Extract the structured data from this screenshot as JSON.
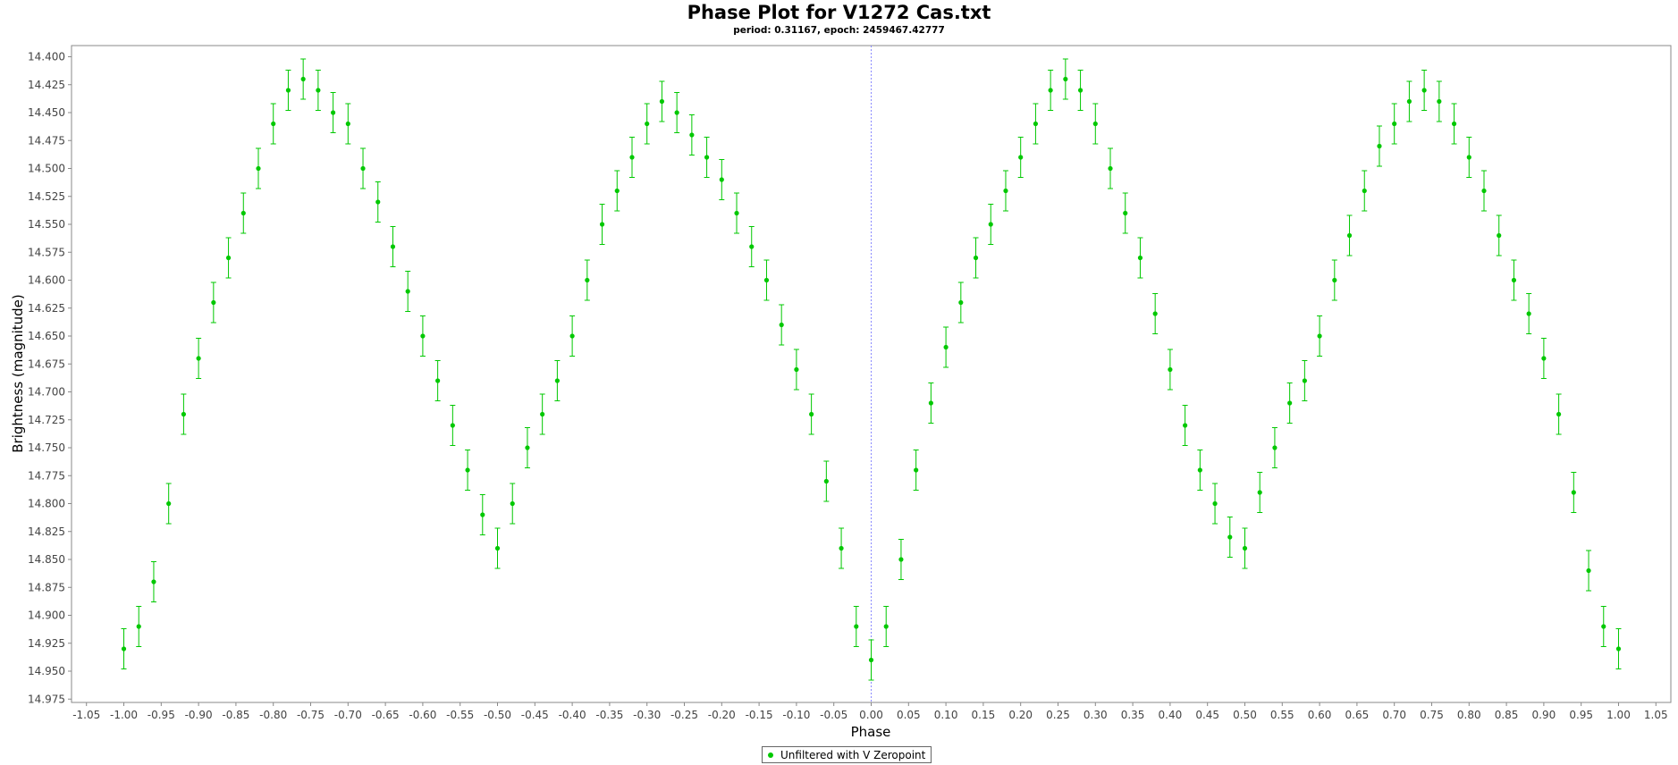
{
  "chart_data": {
    "type": "scatter",
    "title": "Phase Plot for V1272 Cas.txt",
    "subtitle": "period: 0.31167, epoch: 2459467.42777",
    "xlabel": "Phase",
    "ylabel": "Brightness (magnitude)",
    "xlim": [
      -1.07,
      1.07
    ],
    "ylim": [
      14.39,
      14.978
    ],
    "y_inverted": true,
    "grid": false,
    "zero_line": true,
    "x_ticks": [
      "-1.05",
      "-1.00",
      "-0.95",
      "-0.90",
      "-0.85",
      "-0.80",
      "-0.75",
      "-0.70",
      "-0.65",
      "-0.60",
      "-0.55",
      "-0.50",
      "-0.45",
      "-0.40",
      "-0.35",
      "-0.30",
      "-0.25",
      "-0.20",
      "-0.15",
      "-0.10",
      "-0.05",
      "0.00",
      "0.05",
      "0.10",
      "0.15",
      "0.20",
      "0.25",
      "0.30",
      "0.35",
      "0.40",
      "0.45",
      "0.50",
      "0.55",
      "0.60",
      "0.65",
      "0.70",
      "0.75",
      "0.80",
      "0.85",
      "0.90",
      "0.95",
      "1.00",
      "1.05"
    ],
    "y_ticks": [
      "14.400",
      "14.425",
      "14.450",
      "14.475",
      "14.500",
      "14.525",
      "14.550",
      "14.575",
      "14.600",
      "14.625",
      "14.650",
      "14.675",
      "14.700",
      "14.725",
      "14.750",
      "14.775",
      "14.800",
      "14.825",
      "14.850",
      "14.875",
      "14.900",
      "14.925",
      "14.950",
      "14.975"
    ],
    "legend_position": "bottom-center",
    "series": [
      {
        "name": "Unfiltered with V Zeropoint",
        "color": "#00c800",
        "error": 0.018,
        "x": [
          -1.0,
          -0.98,
          -0.96,
          -0.94,
          -0.92,
          -0.9,
          -0.88,
          -0.86,
          -0.84,
          -0.82,
          -0.8,
          -0.78,
          -0.76,
          -0.74,
          -0.72,
          -0.7,
          -0.68,
          -0.66,
          -0.64,
          -0.62,
          -0.6,
          -0.58,
          -0.56,
          -0.54,
          -0.52,
          -0.5,
          -0.48,
          -0.46,
          -0.44,
          -0.42,
          -0.4,
          -0.38,
          -0.36,
          -0.34,
          -0.32,
          -0.3,
          -0.28,
          -0.26,
          -0.24,
          -0.22,
          -0.2,
          -0.18,
          -0.16,
          -0.14,
          -0.12,
          -0.1,
          -0.08,
          -0.06,
          -0.04,
          -0.02,
          0.0,
          0.02,
          0.04,
          0.06,
          0.08,
          0.1,
          0.12,
          0.14,
          0.16,
          0.18,
          0.2,
          0.22,
          0.24,
          0.26,
          0.28,
          0.3,
          0.32,
          0.34,
          0.36,
          0.38,
          0.4,
          0.42,
          0.44,
          0.46,
          0.48,
          0.5,
          0.52,
          0.54,
          0.56,
          0.58,
          0.6,
          0.62,
          0.64,
          0.66,
          0.68,
          0.7,
          0.72,
          0.74,
          0.76,
          0.78,
          0.8,
          0.82,
          0.84,
          0.86,
          0.88,
          0.9,
          0.92,
          0.94,
          0.96,
          0.98,
          1.0
        ],
        "y": [
          14.93,
          14.91,
          14.87,
          14.8,
          14.72,
          14.67,
          14.62,
          14.58,
          14.54,
          14.5,
          14.46,
          14.43,
          14.42,
          14.43,
          14.45,
          14.46,
          14.5,
          14.53,
          14.57,
          14.61,
          14.65,
          14.69,
          14.73,
          14.77,
          14.81,
          14.84,
          14.8,
          14.75,
          14.72,
          14.69,
          14.65,
          14.6,
          14.55,
          14.52,
          14.49,
          14.46,
          14.44,
          14.45,
          14.47,
          14.49,
          14.51,
          14.54,
          14.57,
          14.6,
          14.64,
          14.68,
          14.72,
          14.78,
          14.84,
          14.91,
          14.94,
          14.91,
          14.85,
          14.77,
          14.71,
          14.66,
          14.62,
          14.58,
          14.55,
          14.52,
          14.49,
          14.46,
          14.43,
          14.42,
          14.43,
          14.46,
          14.5,
          14.54,
          14.58,
          14.63,
          14.68,
          14.73,
          14.77,
          14.8,
          14.83,
          14.84,
          14.79,
          14.75,
          14.71,
          14.69,
          14.65,
          14.6,
          14.56,
          14.52,
          14.48,
          14.46,
          14.44,
          14.43,
          14.44,
          14.46,
          14.49,
          14.52,
          14.56,
          14.6,
          14.63,
          14.67,
          14.72,
          14.79,
          14.86,
          14.91,
          14.93
        ]
      }
    ]
  },
  "legend": {
    "label": "Unfiltered with V Zeropoint"
  }
}
